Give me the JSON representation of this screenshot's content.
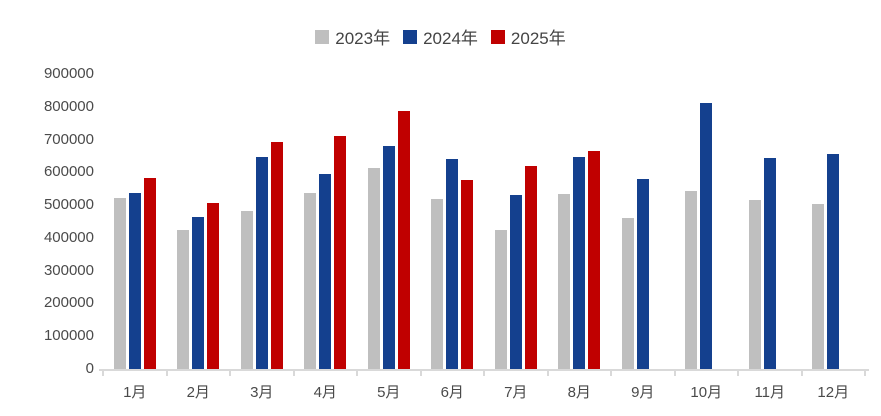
{
  "chart_data": {
    "type": "bar",
    "title": "",
    "xlabel": "",
    "ylabel": "",
    "categories": [
      "1月",
      "2月",
      "3月",
      "4月",
      "5月",
      "6月",
      "7月",
      "8月",
      "9月",
      "10月",
      "11月",
      "12月"
    ],
    "series": [
      {
        "name": "2023年",
        "color": "#BFBFBF",
        "values": [
          522000,
          424000,
          483000,
          537000,
          613000,
          519000,
          423000,
          533000,
          460000,
          542000,
          517000,
          503000
        ]
      },
      {
        "name": "2024年",
        "color": "#14408E",
        "values": [
          538000,
          465000,
          648000,
          594000,
          679000,
          640000,
          530000,
          647000,
          581000,
          810000,
          645000,
          655000
        ]
      },
      {
        "name": "2025年",
        "color": "#C00000",
        "values": [
          583000,
          506000,
          692000,
          710000,
          786000,
          578000,
          618000,
          665000,
          null,
          null,
          null,
          null
        ]
      }
    ],
    "ylim": [
      0,
      900000
    ],
    "ytick_step": 100000,
    "yticks": [
      "0",
      "100000",
      "200000",
      "300000",
      "400000",
      "500000",
      "600000",
      "700000",
      "800000",
      "900000"
    ],
    "grid": false,
    "legend_position": "top"
  },
  "colors": {
    "background": "#FFFFFF",
    "axis": "#D9D9D9",
    "text": "#4A4A4A"
  }
}
